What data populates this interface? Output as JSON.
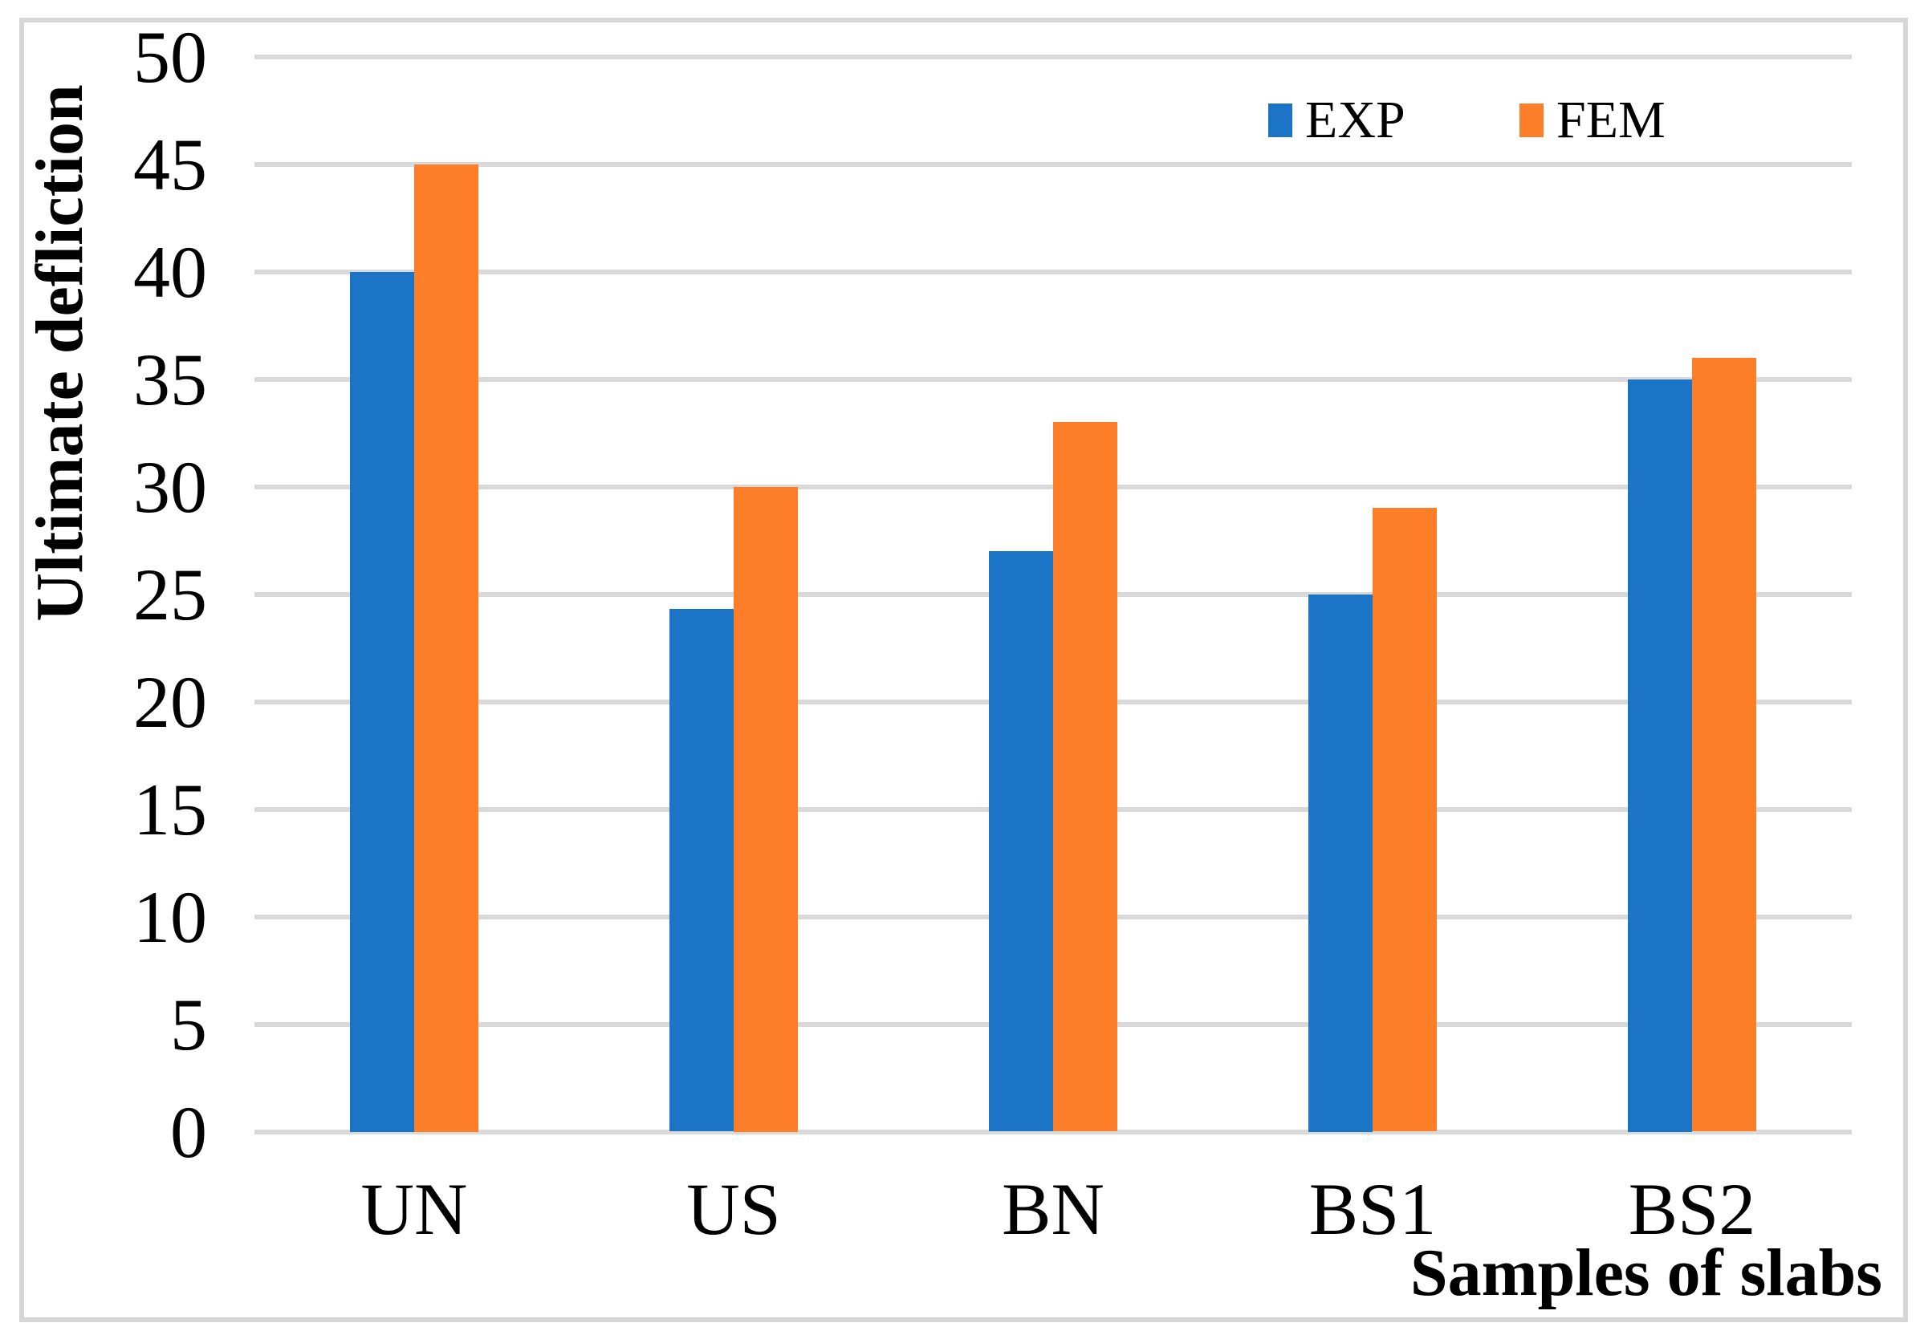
{
  "chart_data": {
    "type": "bar",
    "title": "",
    "categories": [
      "UN",
      "US",
      "BN",
      "BS1",
      "BS2"
    ],
    "series": [
      {
        "name": "EXP",
        "color": "#1b74c6",
        "values": [
          40,
          24.3,
          27,
          25,
          35
        ]
      },
      {
        "name": "FEM",
        "color": "#fd7e28",
        "values": [
          45,
          30,
          33,
          29,
          36
        ]
      }
    ],
    "xlabel": "Samples of slabs",
    "ylabel": "Ultimate defliction",
    "ylim": [
      0,
      50
    ],
    "ytick_step": 5,
    "ytick_labels": [
      "0",
      "5",
      "10",
      "15",
      "20",
      "25",
      "30",
      "35",
      "40",
      "45",
      "50"
    ],
    "grid": "horizontal",
    "gridline_color": "#d9d9d9",
    "plot_background": "#ffffff",
    "border_color": "#d6d6d6",
    "legend_position": "top-right",
    "legend": [
      {
        "label": "EXP",
        "color": "#1b74c6"
      },
      {
        "label": "FEM",
        "color": "#fd7e28"
      }
    ]
  }
}
